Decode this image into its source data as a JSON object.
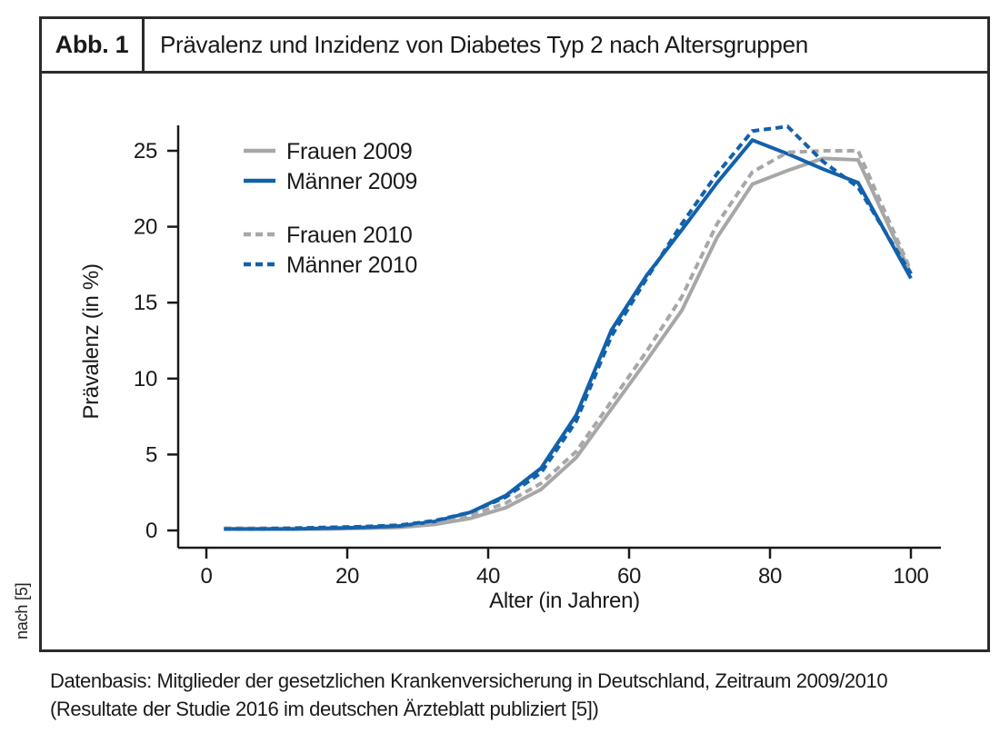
{
  "figure": {
    "label": "Abb. 1",
    "title": "Prävalenz und Inzidenz von Diabetes Typ 2 nach Altersgruppen",
    "side_note": "nach [5]",
    "caption_line1": "Datenbasis: Mitglieder der gesetzlichen Krankenversicherung in Deutschland, Zeitraum 2009/2010",
    "caption_line2": "(Resultate der Studie 2016 im deutschen Ärzteblatt publiziert [5])"
  },
  "chart_data": {
    "type": "line",
    "title": "Prävalenz und Inzidenz von Diabetes Typ 2 nach Altersgruppen",
    "xlabel": "Alter (in Jahren)",
    "ylabel": "Prävalenz (in %)",
    "x_ticks": [
      0,
      20,
      40,
      60,
      80,
      100
    ],
    "y_ticks": [
      0,
      5,
      10,
      15,
      20,
      25
    ],
    "xlim": [
      0,
      104
    ],
    "ylim": [
      0,
      26.7
    ],
    "grid": false,
    "legend_position": "top-left",
    "x": [
      2.5,
      7.5,
      12.5,
      17.5,
      22.5,
      27.5,
      32.5,
      37.5,
      42.5,
      47.5,
      52.5,
      57.5,
      62.5,
      67.5,
      72.5,
      77.5,
      82.5,
      87.5,
      92.5,
      100
    ],
    "series": [
      {
        "name": "Frauen 2009",
        "color": "#a7a7a7",
        "style": "solid",
        "values": [
          0.1,
          0.1,
          0.1,
          0.1,
          0.15,
          0.2,
          0.4,
          0.8,
          1.5,
          2.7,
          4.8,
          8.0,
          11.2,
          14.5,
          19.3,
          22.8,
          23.7,
          24.5,
          24.4,
          16.9
        ]
      },
      {
        "name": "Männer 2009",
        "color": "#1261ab",
        "style": "solid",
        "values": [
          0.1,
          0.1,
          0.1,
          0.15,
          0.2,
          0.3,
          0.6,
          1.2,
          2.3,
          4.1,
          7.6,
          13.2,
          16.8,
          19.8,
          22.9,
          25.7,
          24.8,
          23.8,
          22.9,
          16.6
        ]
      },
      {
        "name": "Frauen 2010",
        "color": "#a7a7a7",
        "style": "dashed",
        "values": [
          0.15,
          0.15,
          0.15,
          0.2,
          0.25,
          0.35,
          0.55,
          1.0,
          1.8,
          3.1,
          5.2,
          8.5,
          11.8,
          15.4,
          20.2,
          23.6,
          24.9,
          25.0,
          25.0,
          17.1
        ]
      },
      {
        "name": "Männer 2010",
        "color": "#1261ab",
        "style": "dashed",
        "values": [
          0.1,
          0.1,
          0.15,
          0.2,
          0.25,
          0.35,
          0.65,
          1.2,
          2.2,
          3.8,
          7.2,
          12.8,
          16.6,
          20.2,
          23.5,
          26.3,
          26.6,
          24.3,
          22.6,
          16.9
        ]
      }
    ]
  }
}
